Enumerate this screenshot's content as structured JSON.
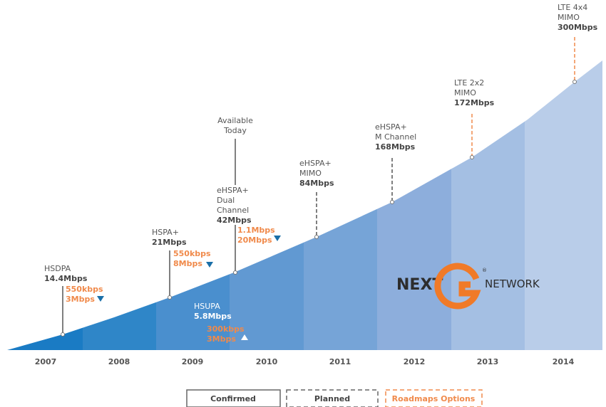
{
  "years": [
    "2007",
    "2008",
    "2009",
    "2010",
    "2011",
    "2012",
    "2013",
    "2014"
  ],
  "milestones": [
    {
      "lines": [
        "HSDPA"
      ],
      "speed": "14.4Mbps",
      "sub": [
        "550kbps",
        "3Mbps"
      ]
    },
    {
      "lines": [
        "HSPA+"
      ],
      "speed": "21Mbps",
      "sub": [
        "550kbps",
        "8Mbps"
      ]
    },
    {
      "lines": [
        "HSUPA"
      ],
      "speed": "5.8Mbps",
      "sub": [
        "300kbps",
        "3Mbps"
      ]
    },
    {
      "lines": [
        "eHSPA+",
        "Dual",
        "Channel"
      ],
      "speed": "42Mbps",
      "sub": [
        "1.1Mbps",
        "20Mbps"
      ]
    },
    {
      "lines": [
        "eHSPA+",
        "MIMO"
      ],
      "speed": "84Mbps",
      "sub": []
    },
    {
      "lines": [
        "eHSPA+",
        "M Channel"
      ],
      "speed": "168Mbps",
      "sub": []
    },
    {
      "lines": [
        "LTE 2x2",
        "MIMO"
      ],
      "speed": "172Mbps",
      "sub": []
    },
    {
      "lines": [
        "LTE 4x4",
        "MIMO"
      ],
      "speed": "300Mbps",
      "sub": []
    }
  ],
  "callout": [
    "Available",
    "Today"
  ],
  "logo": {
    "left": "NEXT",
    "right": "NETWORK",
    "mark": "®"
  },
  "legend": [
    "Confirmed",
    "Planned",
    "Roadmaps Options"
  ]
}
